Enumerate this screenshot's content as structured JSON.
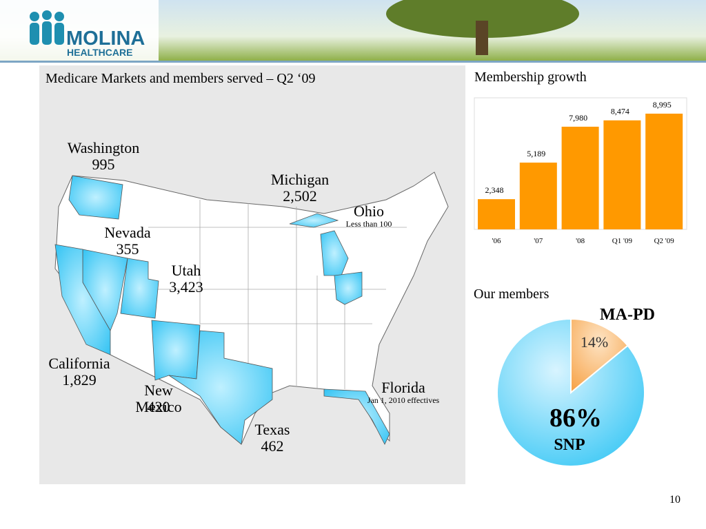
{
  "header": {
    "logo_line1": "MOLINA",
    "logo_line2": "HEALTHCARE"
  },
  "map": {
    "title": "Medicare Markets and members served – Q2 ‘09",
    "states": [
      {
        "name": "Washington",
        "value": "995"
      },
      {
        "name": "Michigan",
        "value": "2,502"
      },
      {
        "name": "Ohio",
        "value": "Less than 100"
      },
      {
        "name": "Nevada",
        "value": "355"
      },
      {
        "name": "Utah",
        "value": "3,423"
      },
      {
        "name": "California",
        "value": "1,829"
      },
      {
        "name": "New Mexico",
        "value": "420"
      },
      {
        "name": "Texas",
        "value": "462"
      },
      {
        "name": "Florida",
        "value": "Jan 1, 2010 effectives"
      }
    ]
  },
  "chart_data": [
    {
      "type": "bar",
      "title": "Membership growth",
      "categories": [
        "'06",
        "'07",
        "'08",
        "Q1 '09",
        "Q2 '09"
      ],
      "values": [
        2348,
        5189,
        7980,
        8474,
        8995
      ],
      "value_labels": [
        "2,348",
        "5,189",
        "7,980",
        "8,474",
        "8,995"
      ],
      "color": "#ff9900"
    },
    {
      "type": "pie",
      "title": "Our members",
      "categories": [
        "MA-PD",
        "SNP"
      ],
      "values": [
        14,
        86
      ],
      "value_labels": [
        "14%",
        "86%"
      ],
      "colors": [
        "#f7a44a",
        "#3cc8f5"
      ]
    }
  ],
  "page_number": "10"
}
